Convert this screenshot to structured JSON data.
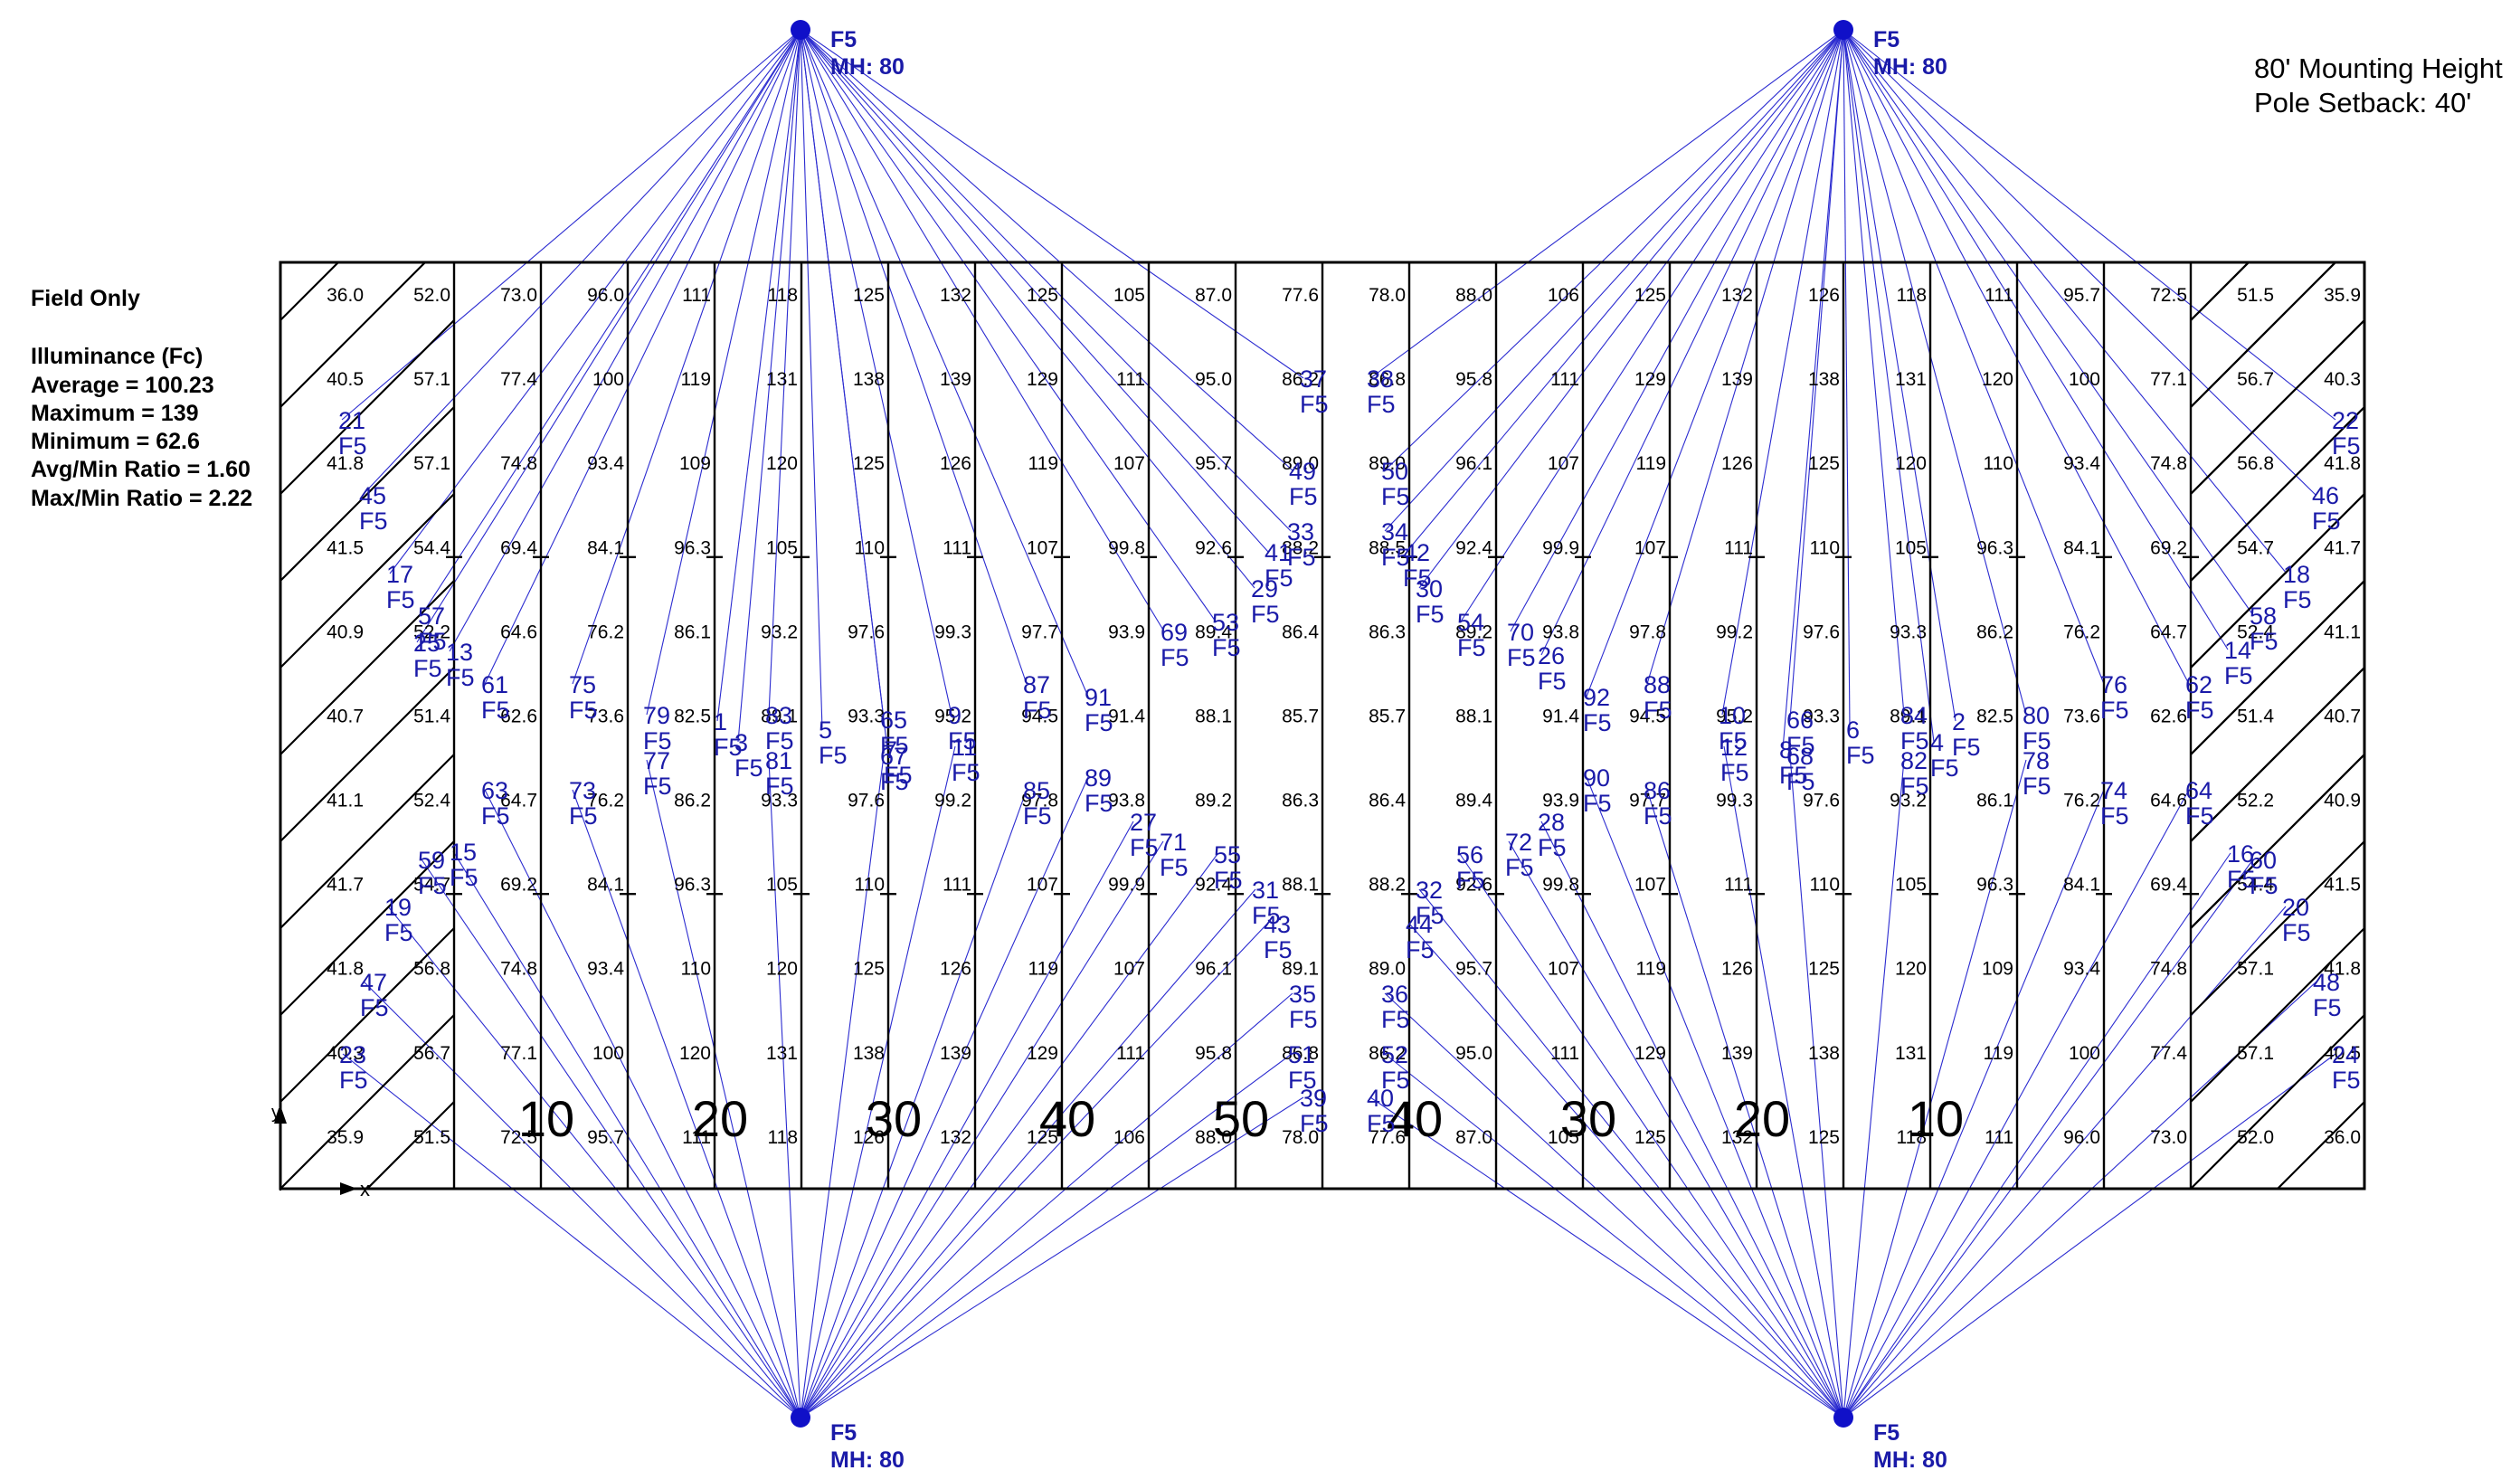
{
  "summary": {
    "heading": "Field Only",
    "subheading": "Illuminance (Fc)",
    "lines": [
      "Average = 100.23",
      "Maximum = 139",
      "Minimum = 62.6",
      "Avg/Min Ratio = 1.60",
      "Max/Min Ratio = 2.22"
    ]
  },
  "notes": [
    "80' Mounting Height",
    "Pole Setback: 40'"
  ],
  "yard_markers": [
    "10",
    "20",
    "30",
    "40",
    "50",
    "40",
    "30",
    "20",
    "10"
  ],
  "poles": [
    {
      "type": "F5",
      "mh": "MH: 80"
    },
    {
      "type": "F5",
      "mh": "MH: 80"
    },
    {
      "type": "F5",
      "mh": "MH: 80"
    },
    {
      "type": "F5",
      "mh": "MH: 80"
    }
  ],
  "fixture_type": "F5",
  "grid_values": [
    [
      "36.0",
      "52.0",
      "73.0",
      "96.0",
      "111",
      "118",
      "125",
      "132",
      "125",
      "105",
      "87.0",
      "77.6",
      "78.0",
      "88.0",
      "106",
      "125",
      "132",
      "126",
      "118",
      "111",
      "95.7",
      "72.5",
      "51.5",
      "35.9"
    ],
    [
      "40.5",
      "57.1",
      "77.4",
      "100",
      "119",
      "131",
      "138",
      "139",
      "129",
      "111",
      "95.0",
      "86.2",
      "86.8",
      "95.8",
      "111",
      "129",
      "139",
      "138",
      "131",
      "120",
      "100",
      "77.1",
      "56.7",
      "40.3"
    ],
    [
      "41.8",
      "57.1",
      "74.8",
      "93.4",
      "109",
      "120",
      "125",
      "126",
      "119",
      "107",
      "95.7",
      "89.0",
      "89.0",
      "96.1",
      "107",
      "119",
      "126",
      "125",
      "120",
      "110",
      "93.4",
      "74.8",
      "56.8",
      "41.8"
    ],
    [
      "41.5",
      "54.4",
      "69.4",
      "84.1",
      "96.3",
      "105",
      "110",
      "111",
      "107",
      "99.8",
      "92.6",
      "88.2",
      "88.5",
      "92.4",
      "99.9",
      "107",
      "111",
      "110",
      "105",
      "96.3",
      "84.1",
      "69.2",
      "54.7",
      "41.7"
    ],
    [
      "40.9",
      "52.2",
      "64.6",
      "76.2",
      "86.1",
      "93.2",
      "97.6",
      "99.3",
      "97.7",
      "93.9",
      "89.4",
      "86.4",
      "86.3",
      "89.2",
      "93.8",
      "97.8",
      "99.2",
      "97.6",
      "93.3",
      "86.2",
      "76.2",
      "64.7",
      "52.4",
      "41.1"
    ],
    [
      "40.7",
      "51.4",
      "62.6",
      "73.6",
      "82.5",
      "89.1",
      "93.3",
      "95.2",
      "94.5",
      "91.4",
      "88.1",
      "85.7",
      "85.7",
      "88.1",
      "91.4",
      "94.5",
      "95.2",
      "93.3",
      "89.1",
      "82.5",
      "73.6",
      "62.6",
      "51.4",
      "40.7"
    ],
    [
      "41.1",
      "52.4",
      "64.7",
      "76.2",
      "86.2",
      "93.3",
      "97.6",
      "99.2",
      "97.8",
      "93.8",
      "89.2",
      "86.3",
      "86.4",
      "89.4",
      "93.9",
      "97.7",
      "99.3",
      "97.6",
      "93.2",
      "86.1",
      "76.2",
      "64.6",
      "52.2",
      "40.9"
    ],
    [
      "41.7",
      "54.7",
      "69.2",
      "84.1",
      "96.3",
      "105",
      "110",
      "111",
      "107",
      "99.9",
      "92.4",
      "88.1",
      "88.2",
      "92.6",
      "99.8",
      "107",
      "111",
      "110",
      "105",
      "96.3",
      "84.1",
      "69.4",
      "54.4",
      "41.5"
    ],
    [
      "41.8",
      "56.8",
      "74.8",
      "93.4",
      "110",
      "120",
      "125",
      "126",
      "119",
      "107",
      "96.1",
      "89.1",
      "89.0",
      "95.7",
      "107",
      "119",
      "126",
      "125",
      "120",
      "109",
      "93.4",
      "74.8",
      "57.1",
      "41.8"
    ],
    [
      "40.3",
      "56.7",
      "77.1",
      "100",
      "120",
      "131",
      "138",
      "139",
      "129",
      "111",
      "95.8",
      "86.8",
      "86.2",
      "95.0",
      "111",
      "129",
      "139",
      "138",
      "131",
      "119",
      "100",
      "77.4",
      "57.1",
      "40.5"
    ],
    [
      "35.9",
      "51.5",
      "72.5",
      "95.7",
      "111",
      "118",
      "126",
      "132",
      "125",
      "106",
      "88.0",
      "78.0",
      "77.6",
      "87.0",
      "105",
      "125",
      "132",
      "125",
      "118",
      "111",
      "96.0",
      "73.0",
      "52.0",
      "36.0"
    ]
  ],
  "aim_points": [
    {
      "id": "1",
      "pole": 1
    },
    {
      "id": "2",
      "pole": 2
    },
    {
      "id": "3",
      "pole": 1
    },
    {
      "id": "4",
      "pole": 2
    },
    {
      "id": "5",
      "pole": 1
    },
    {
      "id": "6",
      "pole": 2
    },
    {
      "id": "7",
      "pole": 1
    },
    {
      "id": "8",
      "pole": 2
    },
    {
      "id": "9",
      "pole": 1
    },
    {
      "id": "10",
      "pole": 2
    },
    {
      "id": "11",
      "pole": 3
    },
    {
      "id": "12",
      "pole": 4
    },
    {
      "id": "13",
      "pole": 1
    },
    {
      "id": "14",
      "pole": 2
    },
    {
      "id": "15",
      "pole": 3
    },
    {
      "id": "16",
      "pole": 4
    },
    {
      "id": "17",
      "pole": 1
    },
    {
      "id": "18",
      "pole": 2
    },
    {
      "id": "19",
      "pole": 3
    },
    {
      "id": "20",
      "pole": 4
    },
    {
      "id": "21",
      "pole": 1
    },
    {
      "id": "22",
      "pole": 2
    },
    {
      "id": "23",
      "pole": 3
    },
    {
      "id": "24",
      "pole": 4
    },
    {
      "id": "25",
      "pole": 1
    },
    {
      "id": "26",
      "pole": 2
    },
    {
      "id": "27",
      "pole": 3
    },
    {
      "id": "28",
      "pole": 4
    },
    {
      "id": "29",
      "pole": 1
    },
    {
      "id": "30",
      "pole": 2
    },
    {
      "id": "31",
      "pole": 3
    },
    {
      "id": "32",
      "pole": 4
    },
    {
      "id": "33",
      "pole": 1
    },
    {
      "id": "34",
      "pole": 2
    },
    {
      "id": "35",
      "pole": 3
    },
    {
      "id": "36",
      "pole": 4
    },
    {
      "id": "37",
      "pole": 1
    },
    {
      "id": "38",
      "pole": 2
    },
    {
      "id": "39",
      "pole": 3
    },
    {
      "id": "40",
      "pole": 4
    },
    {
      "id": "41",
      "pole": 1
    },
    {
      "id": "42",
      "pole": 2
    },
    {
      "id": "43",
      "pole": 3
    },
    {
      "id": "44",
      "pole": 4
    },
    {
      "id": "45",
      "pole": 1
    },
    {
      "id": "46",
      "pole": 2
    },
    {
      "id": "47",
      "pole": 3
    },
    {
      "id": "48",
      "pole": 4
    },
    {
      "id": "49",
      "pole": 1
    },
    {
      "id": "50",
      "pole": 2
    },
    {
      "id": "51",
      "pole": 3
    },
    {
      "id": "52",
      "pole": 4
    },
    {
      "id": "53",
      "pole": 1
    },
    {
      "id": "54",
      "pole": 2
    },
    {
      "id": "55",
      "pole": 3
    },
    {
      "id": "56",
      "pole": 4
    },
    {
      "id": "57",
      "pole": 1
    },
    {
      "id": "58",
      "pole": 2
    },
    {
      "id": "59",
      "pole": 3
    },
    {
      "id": "60",
      "pole": 4
    },
    {
      "id": "61",
      "pole": 1
    },
    {
      "id": "62",
      "pole": 2
    },
    {
      "id": "63",
      "pole": 3
    },
    {
      "id": "64",
      "pole": 4
    },
    {
      "id": "65",
      "pole": 1
    },
    {
      "id": "66",
      "pole": 2
    },
    {
      "id": "67",
      "pole": 3
    },
    {
      "id": "68",
      "pole": 4
    },
    {
      "id": "69",
      "pole": 1
    },
    {
      "id": "70",
      "pole": 2
    },
    {
      "id": "71",
      "pole": 3
    },
    {
      "id": "72",
      "pole": 4
    },
    {
      "id": "73",
      "pole": 3
    },
    {
      "id": "74",
      "pole": 4
    },
    {
      "id": "75",
      "pole": 1
    },
    {
      "id": "76",
      "pole": 2
    },
    {
      "id": "77",
      "pole": 3
    },
    {
      "id": "78",
      "pole": 4
    },
    {
      "id": "79",
      "pole": 1
    },
    {
      "id": "80",
      "pole": 2
    },
    {
      "id": "81",
      "pole": 3
    },
    {
      "id": "82",
      "pole": 4
    },
    {
      "id": "83",
      "pole": 1
    },
    {
      "id": "84",
      "pole": 2
    },
    {
      "id": "85",
      "pole": 3
    },
    {
      "id": "86",
      "pole": 4
    },
    {
      "id": "87",
      "pole": 1
    },
    {
      "id": "88",
      "pole": 2
    },
    {
      "id": "89",
      "pole": 3
    },
    {
      "id": "90",
      "pole": 4
    },
    {
      "id": "91",
      "pole": 1
    },
    {
      "id": "92",
      "pole": 2
    }
  ]
}
